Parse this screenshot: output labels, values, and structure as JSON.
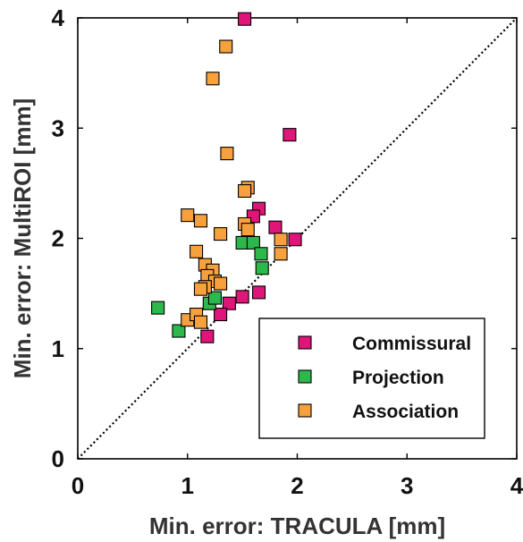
{
  "chart_data": {
    "type": "scatter",
    "xlabel": "Min. error: TRACULA [mm]",
    "ylabel": "Min. error: MultiROI [mm]",
    "xlim": [
      0,
      4
    ],
    "ylim": [
      0,
      4
    ],
    "xticks": [
      "0",
      "1",
      "2",
      "3",
      "4"
    ],
    "yticks": [
      "0",
      "1",
      "2",
      "3",
      "4"
    ],
    "grid": false,
    "identity_line": true,
    "legend_position": "bottom-right",
    "series": [
      {
        "name": "Commissural",
        "color": "#e0157a",
        "points": [
          [
            1.52,
            3.99
          ],
          [
            1.93,
            2.94
          ],
          [
            1.65,
            2.27
          ],
          [
            1.6,
            2.2
          ],
          [
            1.8,
            2.1
          ],
          [
            1.98,
            1.99
          ],
          [
            1.65,
            1.51
          ],
          [
            1.5,
            1.47
          ],
          [
            1.38,
            1.41
          ],
          [
            1.3,
            1.31
          ],
          [
            1.18,
            1.11
          ]
        ]
      },
      {
        "name": "Projection",
        "color": "#2db84b",
        "points": [
          [
            0.73,
            1.37
          ],
          [
            0.92,
            1.16
          ],
          [
            1.2,
            1.41
          ],
          [
            1.25,
            1.46
          ],
          [
            1.5,
            1.96
          ],
          [
            1.6,
            1.96
          ],
          [
            1.67,
            1.86
          ],
          [
            1.68,
            1.73
          ]
        ]
      },
      {
        "name": "Association",
        "color": "#f7a13c",
        "points": [
          [
            1.35,
            3.74
          ],
          [
            1.23,
            3.45
          ],
          [
            1.36,
            2.77
          ],
          [
            1.55,
            2.46
          ],
          [
            1.52,
            2.43
          ],
          [
            1.0,
            2.21
          ],
          [
            1.12,
            2.16
          ],
          [
            1.52,
            2.13
          ],
          [
            1.55,
            2.08
          ],
          [
            1.3,
            2.04
          ],
          [
            1.85,
            1.99
          ],
          [
            1.85,
            1.86
          ],
          [
            1.08,
            1.88
          ],
          [
            1.16,
            1.76
          ],
          [
            1.23,
            1.71
          ],
          [
            1.18,
            1.66
          ],
          [
            1.25,
            1.61
          ],
          [
            1.3,
            1.59
          ],
          [
            1.16,
            1.56
          ],
          [
            1.12,
            1.54
          ],
          [
            1.0,
            1.26
          ],
          [
            1.08,
            1.31
          ],
          [
            1.12,
            1.24
          ]
        ]
      }
    ]
  }
}
